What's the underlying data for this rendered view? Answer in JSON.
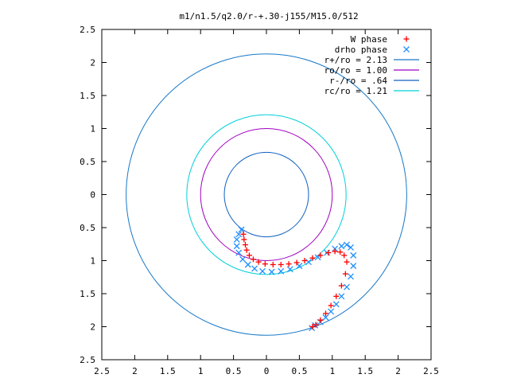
{
  "chart_data": {
    "type": "scatter",
    "title": "m1/n1.5/q2.0/r-+.30-j155/M15.0/512",
    "xlabel": "",
    "ylabel": "",
    "xlim": [
      -2.5,
      2.5
    ],
    "ylim": [
      -2.5,
      2.5
    ],
    "x_ticks": [
      -2.5,
      -2,
      -1.5,
      -1,
      -0.5,
      0,
      0.5,
      1,
      1.5,
      2,
      2.5
    ],
    "y_ticks": [
      2.5,
      2,
      1.5,
      1,
      0.5,
      0,
      -0.5,
      -1,
      -1.5,
      -2,
      -2.5
    ],
    "x_tick_labels": [
      "2.5",
      "2",
      "1.5",
      "1",
      "0.5",
      "0",
      "0.5",
      "1",
      "1.5",
      "2",
      "2.5"
    ],
    "y_tick_labels": [
      "2.5",
      "2",
      "1.5",
      "1",
      "0.5",
      "0",
      "0.5",
      "1",
      "1.5",
      "2",
      "2.5"
    ],
    "grid": false,
    "legend_position": "top-right",
    "legend": [
      {
        "label": "W phase",
        "marker": "plus",
        "color": "#ff0000"
      },
      {
        "label": "drho phase",
        "marker": "cross",
        "color": "#1f8fff"
      },
      {
        "label": "r+/ro = 2.13",
        "line": true,
        "color": "#1878c8"
      },
      {
        "label": "ro/ro = 1.00",
        "line": true,
        "color": "#a000c0"
      },
      {
        "label": "r-/ro = .64",
        "line": true,
        "color": "#1060c0"
      },
      {
        "label": "rc/ro = 1.21",
        "line": true,
        "color": "#00d0d8"
      }
    ],
    "circles": [
      {
        "name": "r+/ro = 2.13",
        "r": 2.13,
        "color": "#1878c8"
      },
      {
        "name": "ro/ro = 1.00",
        "r": 1.0,
        "color": "#a000c0"
      },
      {
        "name": "r-/ro = .64",
        "r": 0.64,
        "color": "#1060c0"
      },
      {
        "name": "rc/ro = 1.21",
        "r": 1.21,
        "color": "#00d0d8"
      }
    ],
    "series": [
      {
        "name": "W phase",
        "marker": "plus",
        "color": "#ff0000",
        "x": [
          -0.35,
          -0.34,
          -0.32,
          -0.3,
          -0.26,
          -0.2,
          -0.12,
          -0.02,
          0.1,
          0.22,
          0.34,
          0.46,
          0.58,
          0.7,
          0.82,
          0.94,
          1.04,
          1.12,
          1.18,
          1.22,
          1.2,
          1.14,
          1.06,
          0.98,
          0.9,
          0.82,
          0.75,
          0.7
        ],
        "y": [
          -0.6,
          -0.68,
          -0.76,
          -0.84,
          -0.92,
          -0.98,
          -1.02,
          -1.05,
          -1.06,
          -1.06,
          -1.05,
          -1.03,
          -1.0,
          -0.96,
          -0.92,
          -0.88,
          -0.86,
          -0.87,
          -0.92,
          -1.02,
          -1.2,
          -1.38,
          -1.54,
          -1.68,
          -1.8,
          -1.9,
          -1.97,
          -2.0
        ]
      },
      {
        "name": "drho phase",
        "marker": "cross",
        "color": "#1f8fff",
        "x": [
          -0.38,
          -0.42,
          -0.45,
          -0.45,
          -0.42,
          -0.36,
          -0.28,
          -0.18,
          -0.06,
          0.08,
          0.22,
          0.36,
          0.5,
          0.64,
          0.78,
          0.92,
          1.04,
          1.14,
          1.22,
          1.28,
          1.32,
          1.32,
          1.28,
          1.22,
          1.14,
          1.06,
          0.98,
          0.9,
          0.82,
          0.74,
          0.69
        ],
        "y": [
          -0.53,
          -0.6,
          -0.68,
          -0.78,
          -0.88,
          -0.98,
          -1.06,
          -1.12,
          -1.16,
          -1.17,
          -1.16,
          -1.13,
          -1.08,
          -1.02,
          -0.95,
          -0.88,
          -0.82,
          -0.78,
          -0.76,
          -0.8,
          -0.92,
          -1.08,
          -1.24,
          -1.4,
          -1.54,
          -1.66,
          -1.77,
          -1.86,
          -1.93,
          -1.98,
          -2.02
        ]
      }
    ]
  }
}
